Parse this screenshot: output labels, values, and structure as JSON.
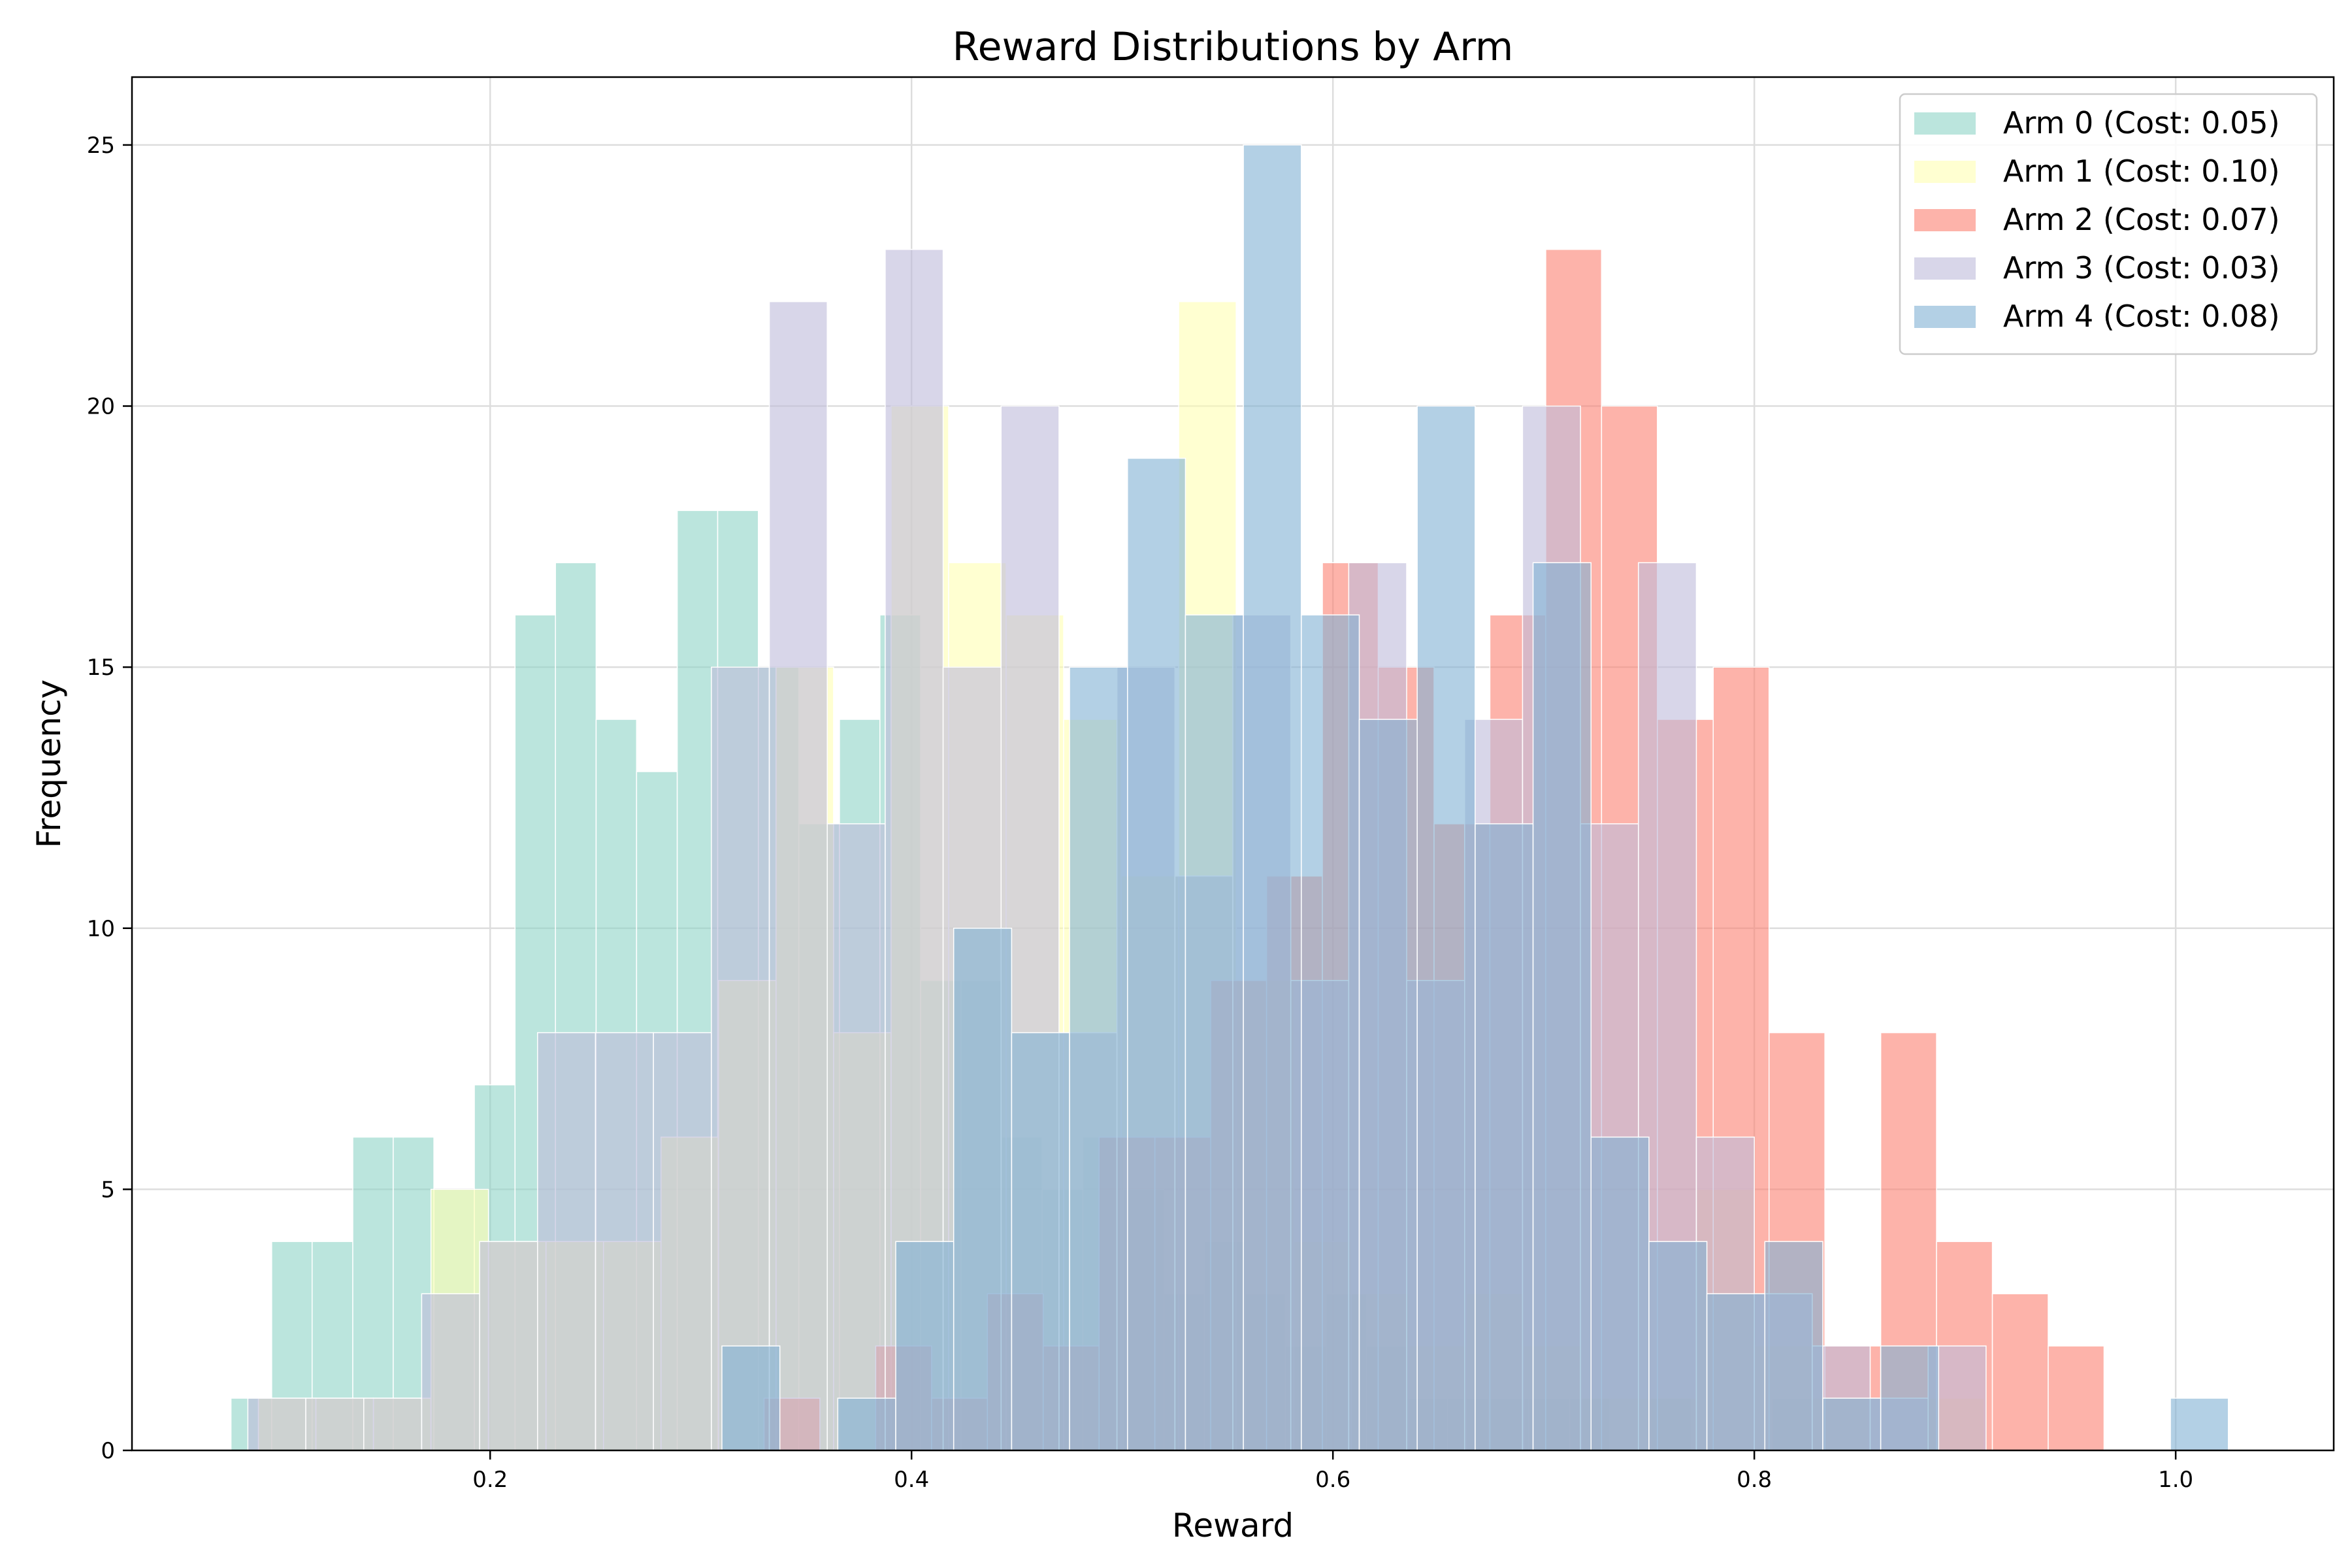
{
  "chart_data": {
    "type": "bar",
    "title": "Reward Distributions by Arm",
    "xlabel": "Reward",
    "ylabel": "Frequency",
    "xlim": [
      0.03,
      1.075
    ],
    "ylim": [
      0,
      26.3
    ],
    "xticks": [
      0.2,
      0.4,
      0.6,
      0.8,
      1.0
    ],
    "xtick_labels": [
      "0.2",
      "0.4",
      "0.6",
      "0.8",
      "1.0"
    ],
    "yticks": [
      0,
      5,
      10,
      15,
      20,
      25
    ],
    "ytick_labels": [
      "0",
      "5",
      "10",
      "15",
      "20",
      "25"
    ],
    "grid": true,
    "legend_position": "upper right",
    "series": [
      {
        "name": "Arm 0 (Cost: 0.05)",
        "color": "#8dd3c7",
        "bin_edges": [
          0.077,
          0.0963,
          0.1155,
          0.1348,
          0.154,
          0.1733,
          0.1925,
          0.2118,
          0.231,
          0.2503,
          0.2695,
          0.2888,
          0.308,
          0.3273,
          0.3465,
          0.3658,
          0.385,
          0.4043,
          0.4235,
          0.4428,
          0.462,
          0.4813,
          0.5005,
          0.5198,
          0.539,
          0.5583,
          0.5775,
          0.5968,
          0.616,
          0.6353,
          0.6545,
          0.6738,
          0.693,
          0.7123,
          0.7315,
          0.7508,
          0.77,
          0.7893,
          0.8085,
          0.8278,
          0.847
        ],
        "counts": [
          1,
          4,
          4,
          6,
          6,
          5,
          7,
          16,
          17,
          14,
          13,
          18,
          18,
          15,
          12,
          14,
          16,
          9,
          9,
          6,
          5,
          6,
          5,
          3,
          4,
          3,
          2,
          3,
          2,
          1,
          1,
          1,
          1,
          1,
          0,
          1,
          0,
          0,
          1,
          0
        ]
      },
      {
        "name": "Arm 1 (Cost: 0.10)",
        "color": "#ffffb3",
        "bin_edges": [
          0.09,
          0.1173,
          0.1446,
          0.1719,
          0.1992,
          0.2265,
          0.2538,
          0.2811,
          0.3084,
          0.3357,
          0.363,
          0.3903,
          0.4176,
          0.4449,
          0.4722,
          0.4995,
          0.5268,
          0.5541,
          0.5814,
          0.6087,
          0.636,
          0.6633,
          0.6906,
          0.7179,
          0.7452,
          0.7725,
          0.7998,
          0.8271,
          0.8544,
          0.8817,
          0.909
        ],
        "counts": [
          1,
          1,
          1,
          5,
          4,
          4,
          4,
          6,
          9,
          15,
          8,
          20,
          17,
          16,
          14,
          11,
          22,
          9,
          4,
          3,
          2,
          3,
          2,
          1,
          1,
          5,
          2,
          1,
          0,
          1
        ]
      },
      {
        "name": "Arm 2 (Cost: 0.07)",
        "color": "#fb8072",
        "bin_edges": [
          0.33,
          0.3565,
          0.383,
          0.4095,
          0.436,
          0.4625,
          0.489,
          0.5155,
          0.542,
          0.5685,
          0.595,
          0.6215,
          0.648,
          0.6745,
          0.701,
          0.7275,
          0.754,
          0.7805,
          0.807,
          0.8335,
          0.86,
          0.8865,
          0.913,
          0.9395,
          0.966
        ],
        "counts": [
          1,
          0,
          2,
          1,
          3,
          2,
          6,
          6,
          9,
          11,
          17,
          15,
          12,
          16,
          23,
          20,
          14,
          15,
          8,
          2,
          8,
          4,
          3,
          2
        ]
      },
      {
        "name": "Arm 3 (Cost: 0.03)",
        "color": "#bebada",
        "bin_edges": [
          0.085,
          0.1125,
          0.14,
          0.1675,
          0.195,
          0.2225,
          0.25,
          0.2775,
          0.305,
          0.3325,
          0.36,
          0.3875,
          0.415,
          0.4425,
          0.47,
          0.4975,
          0.525,
          0.5525,
          0.58,
          0.6075,
          0.635,
          0.6625,
          0.69,
          0.7175,
          0.745,
          0.7725,
          0.8,
          0.8275,
          0.855,
          0.8825,
          0.91
        ],
        "counts": [
          1,
          1,
          1,
          3,
          4,
          8,
          8,
          8,
          15,
          22,
          12,
          23,
          15,
          20,
          8,
          15,
          11,
          16,
          9,
          17,
          9,
          14,
          20,
          12,
          17,
          6,
          3,
          2,
          1,
          2
        ]
      },
      {
        "name": "Arm 4 (Cost: 0.08)",
        "color": "#80b1d3",
        "bin_edges": [
          0.31,
          0.3375,
          0.365,
          0.3925,
          0.42,
          0.4475,
          0.475,
          0.5025,
          0.53,
          0.5575,
          0.585,
          0.6125,
          0.64,
          0.6675,
          0.695,
          0.7225,
          0.75,
          0.7775,
          0.805,
          0.8325,
          0.86,
          0.8875,
          0.915,
          0.9425,
          0.97,
          0.9975,
          1.025
        ],
        "counts": [
          2,
          0,
          1,
          4,
          10,
          8,
          15,
          19,
          16,
          25,
          16,
          14,
          20,
          12,
          17,
          6,
          4,
          3,
          4,
          1,
          2,
          0,
          0,
          0,
          0,
          1
        ]
      }
    ]
  }
}
